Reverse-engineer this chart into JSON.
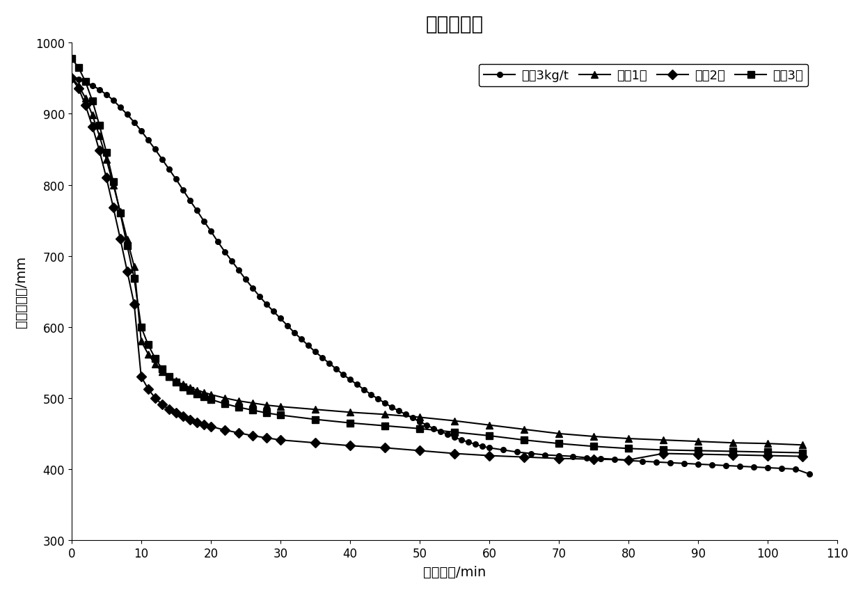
{
  "title": "沉降曲线图",
  "xlabel": "沉降时间/min",
  "ylabel": "矿浆层高度/mm",
  "xlim": [
    0,
    110
  ],
  "ylim": [
    300,
    1000
  ],
  "xticks": [
    0,
    10,
    20,
    30,
    40,
    50,
    60,
    70,
    80,
    90,
    100,
    110
  ],
  "yticks": [
    300,
    400,
    500,
    600,
    700,
    800,
    900,
    1000
  ],
  "series": [
    {
      "label": "石灰3kg/t",
      "marker": "o",
      "color": "#000000",
      "x": [
        0,
        1,
        2,
        3,
        4,
        5,
        6,
        7,
        8,
        9,
        10,
        11,
        12,
        13,
        14,
        15,
        16,
        17,
        18,
        19,
        20,
        21,
        22,
        23,
        24,
        25,
        26,
        27,
        28,
        29,
        30,
        31,
        32,
        33,
        34,
        35,
        36,
        37,
        38,
        39,
        40,
        41,
        42,
        43,
        44,
        45,
        46,
        47,
        48,
        49,
        50,
        51,
        52,
        53,
        54,
        55,
        56,
        57,
        58,
        59,
        60,
        62,
        64,
        66,
        68,
        70,
        72,
        74,
        76,
        78,
        80,
        82,
        84,
        86,
        88,
        90,
        92,
        94,
        96,
        98,
        100,
        102,
        104,
        106
      ],
      "y": [
        950,
        948,
        944,
        940,
        934,
        927,
        919,
        909,
        899,
        888,
        876,
        863,
        850,
        836,
        822,
        808,
        793,
        778,
        764,
        749,
        735,
        720,
        706,
        693,
        680,
        667,
        655,
        643,
        632,
        622,
        612,
        602,
        592,
        583,
        574,
        565,
        557,
        549,
        541,
        533,
        526,
        519,
        512,
        505,
        499,
        493,
        487,
        482,
        477,
        472,
        467,
        462,
        457,
        453,
        449,
        445,
        441,
        438,
        435,
        432,
        430,
        427,
        424,
        422,
        420,
        419,
        418,
        416,
        415,
        414,
        412,
        411,
        410,
        409,
        408,
        407,
        406,
        405,
        404,
        403,
        402,
        401,
        400,
        393
      ]
    },
    {
      "label": "配比1号",
      "marker": "^",
      "color": "#000000",
      "x": [
        0,
        1,
        2,
        3,
        4,
        5,
        6,
        7,
        8,
        9,
        10,
        11,
        12,
        13,
        14,
        15,
        16,
        17,
        18,
        19,
        20,
        22,
        24,
        26,
        28,
        30,
        35,
        40,
        45,
        50,
        55,
        60,
        65,
        70,
        75,
        80,
        85,
        90,
        95,
        100,
        105
      ],
      "y": [
        950,
        940,
        922,
        898,
        869,
        836,
        800,
        762,
        723,
        685,
        580,
        562,
        548,
        537,
        530,
        524,
        519,
        515,
        511,
        508,
        505,
        500,
        496,
        493,
        490,
        488,
        484,
        480,
        477,
        473,
        468,
        462,
        456,
        450,
        446,
        443,
        441,
        439,
        437,
        436,
        434
      ]
    },
    {
      "label": "配比2号",
      "marker": "D",
      "color": "#000000",
      "x": [
        0,
        1,
        2,
        3,
        4,
        5,
        6,
        7,
        8,
        9,
        10,
        11,
        12,
        13,
        14,
        15,
        16,
        17,
        18,
        19,
        20,
        22,
        24,
        26,
        28,
        30,
        35,
        40,
        45,
        50,
        55,
        60,
        65,
        70,
        75,
        80,
        85,
        90,
        95,
        100,
        105
      ],
      "y": [
        950,
        936,
        912,
        882,
        848,
        810,
        768,
        724,
        678,
        632,
        530,
        513,
        500,
        491,
        484,
        479,
        474,
        470,
        466,
        463,
        460,
        455,
        451,
        447,
        444,
        441,
        437,
        433,
        430,
        426,
        422,
        419,
        417,
        415,
        414,
        413,
        422,
        421,
        420,
        419,
        418
      ]
    },
    {
      "label": "配备3号",
      "marker": "s",
      "color": "#000000",
      "x": [
        0,
        1,
        2,
        3,
        4,
        5,
        6,
        7,
        8,
        9,
        10,
        11,
        12,
        13,
        14,
        15,
        16,
        17,
        18,
        19,
        20,
        22,
        24,
        26,
        28,
        30,
        35,
        40,
        45,
        50,
        55,
        60,
        65,
        70,
        75,
        80,
        85,
        90,
        95,
        100,
        105
      ],
      "y": [
        978,
        965,
        945,
        918,
        884,
        846,
        804,
        760,
        714,
        668,
        600,
        575,
        556,
        541,
        530,
        522,
        516,
        511,
        506,
        502,
        498,
        492,
        487,
        483,
        479,
        476,
        470,
        465,
        461,
        457,
        452,
        447,
        441,
        436,
        432,
        429,
        427,
        426,
        425,
        424,
        423
      ]
    }
  ]
}
